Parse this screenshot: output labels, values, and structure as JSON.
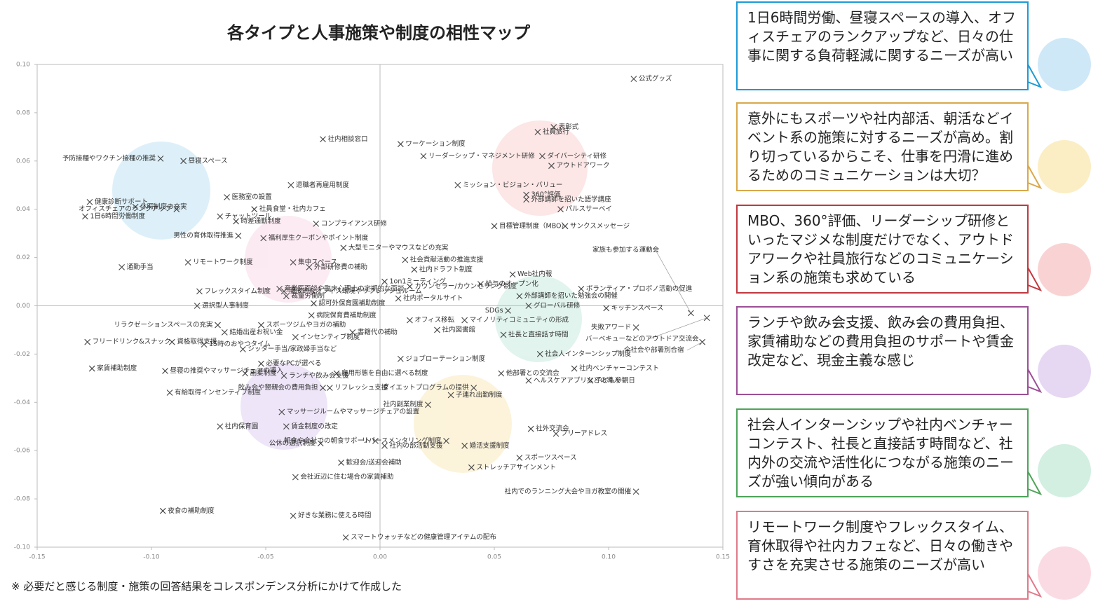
{
  "chart_data": {
    "type": "scatter",
    "title": "各タイプと人事施策や制度の相性マップ",
    "labels": [
      "公式グッズ",
      "社内相談窓口",
      "ワーケーション制度",
      "リーダーシップ・マネジメント研修",
      "表彰式",
      "社員旅行",
      "ダイバーシティ研修",
      "アウトドアワーク",
      "ミッション・ビジョン・バリュー",
      "360°評価",
      "外部講師を招いた語学講座",
      "パルスサーベイ",
      "サンクスメッセージ",
      "目標管理制度（MBO）",
      "家族も参加する運動会",
      "バーベキューなどのアウトドア交流会",
      "全社会や部署別合宿",
      "予防接種やワクチン接種の推奨",
      "昼寝スペース",
      "オフィスチェアのランクアップ",
      "健康診断サポート",
      "休暇制度の充実",
      "1日6時間労働制度",
      "退職者再雇用制度",
      "医務室の設置",
      "社員食堂・社内カフェ",
      "チャットツール",
      "時差通勤制度",
      "コンプライアンス研修",
      "福利厚生クーポンやポイント制度",
      "男性の育休取得推進",
      "大型モニターやマウスなどの充実",
      "社会貢献活動の推進支援",
      "社内ドラフト制度",
      "通勤手当",
      "リモートワーク制度",
      "集中スペース",
      "外部研修費の補助",
      "Web社内報",
      "開放的なオフィス環境やリフレッシュルーム",
      "1on1ミーティング",
      "給与のオープン化",
      "産業医面談や臨床心理士の定期的な面談",
      "カウンセラー/カウンセリング制度",
      "ボランティア・プロボノ活動の促進",
      "フレックスタイム制度",
      "裁量労働制",
      "外部講師を招いた勉強会の開催",
      "社内ポータルサイト",
      "選択型人事制度",
      "認可外保育園補助制度",
      "グローバル研修",
      "キッチンスペース",
      "SDGs",
      "病院保育費補助制度",
      "マイノリティコミュニティの形成",
      "リラクゼーションスペースの充実",
      "結婚出産お祝い金",
      "スポーツジムやヨガの補助",
      "オフィス移転",
      "社内図書館",
      "失敗アワード",
      "フリードリンク&スナック",
      "資格取得支援",
      "インセンティブ制度",
      "書籍代の補助",
      "社長と直接話す時間",
      "15時のおやつタイム",
      "シッター手当/家政婦手当など",
      "ジョブローテーション制度",
      "社会人インターンシップ制度",
      "社内ベンチャーコンテスト",
      "子ども参観日",
      "昼寝の推奨やマッサージチェアの導入",
      "家賃補助制度",
      "必要なPCが選べる",
      "雇用形態を自由に選べる制度",
      "ランチや飲み会支援",
      "他部署との交流会",
      "ヘルスケアアプリなどの導入",
      "副業制度",
      "リフレッシュ支援",
      "ダイエットプログラムの提供",
      "有給取得インセンティブ制度",
      "飲み会や懇親会の費用負担",
      "子連れ出勤制度",
      "社内副業制度",
      "マッサージルームやマッサージチェアの設置",
      "社内保育園",
      "賃金制度の改定",
      "社外交流会",
      "フリーアドレス",
      "リバースメンタリング制度",
      "朝食や会社での朝食サポート",
      "公休の選択制度",
      "婚活支援制度",
      "社内の部活動支援",
      "スポーツスペース",
      "歓迎会/送迎会補助",
      "ストレッチアサインメント",
      "会社近辺に住む場合の家賃補助",
      "社内でのランニング大会やヨガ教室の開催",
      "夜食の補助制度",
      "好きな業務に使える時間",
      "スマートウォッチなどの健康管理アイテムの配布"
    ],
    "x": [
      0.111,
      -0.025,
      0.009,
      0.019,
      0.076,
      0.069,
      0.071,
      0.075,
      0.034,
      0.064,
      0.064,
      0.079,
      0.081,
      0.05,
      0.136,
      0.143,
      0.141,
      -0.096,
      -0.086,
      -0.089,
      -0.127,
      -0.107,
      -0.129,
      -0.039,
      -0.067,
      -0.055,
      -0.07,
      -0.063,
      -0.028,
      -0.051,
      -0.062,
      -0.016,
      0.011,
      0.015,
      -0.113,
      -0.084,
      -0.038,
      -0.031,
      0.058,
      -0.042,
      0.002,
      0.044,
      -0.044,
      0.013,
      0.088,
      -0.079,
      -0.041,
      0.061,
      0.008,
      -0.08,
      -0.029,
      0.065,
      0.099,
      0.056,
      -0.03,
      0.037,
      -0.071,
      -0.068,
      -0.052,
      0.013,
      0.025,
      0.112,
      -0.128,
      -0.091,
      -0.037,
      -0.012,
      0.054,
      -0.077,
      -0.06,
      0.009,
      0.07,
      0.085,
      0.092,
      -0.094,
      -0.126,
      -0.052,
      -0.019,
      -0.042,
      0.053,
      0.065,
      -0.059,
      -0.022,
      0.041,
      -0.092,
      -0.025,
      0.031,
      0.021,
      -0.043,
      -0.07,
      -0.041,
      0.066,
      0.077,
      0.029,
      -0.002,
      -0.026,
      0.037,
      0.002,
      0.061,
      -0.017,
      0.04,
      -0.037,
      0.112,
      -0.095,
      -0.038,
      -0.015
    ],
    "y": [
      0.094,
      0.069,
      0.067,
      0.062,
      0.074,
      0.072,
      0.062,
      0.058,
      0.05,
      0.046,
      0.044,
      0.04,
      0.033,
      0.033,
      -0.003,
      -0.005,
      -0.015,
      0.061,
      0.06,
      0.04,
      0.043,
      0.041,
      0.037,
      0.05,
      0.045,
      0.04,
      0.037,
      0.035,
      0.034,
      0.028,
      0.029,
      0.024,
      0.019,
      0.015,
      0.016,
      0.018,
      0.018,
      0.016,
      0.013,
      0.006,
      0.01,
      0.009,
      0.007,
      0.008,
      0.007,
      0.006,
      0.004,
      0.004,
      0.003,
      0.0,
      0.001,
      0.0,
      -0.001,
      -0.002,
      -0.004,
      -0.006,
      -0.008,
      -0.011,
      -0.008,
      -0.006,
      -0.01,
      -0.009,
      -0.015,
      -0.015,
      -0.013,
      -0.011,
      -0.012,
      -0.016,
      -0.018,
      -0.022,
      -0.02,
      -0.026,
      -0.031,
      -0.027,
      -0.026,
      -0.024,
      -0.028,
      -0.029,
      -0.028,
      -0.031,
      -0.028,
      -0.034,
      -0.034,
      -0.036,
      -0.034,
      -0.037,
      -0.041,
      -0.044,
      -0.05,
      -0.05,
      -0.051,
      -0.053,
      -0.056,
      -0.056,
      -0.057,
      -0.058,
      -0.058,
      -0.063,
      -0.065,
      -0.067,
      -0.071,
      -0.077,
      -0.085,
      -0.087,
      -0.096
    ],
    "xlim": [
      -0.15,
      0.15
    ],
    "xticks": [
      -0.15,
      {
        "value": -0.1,
        "label": "-0.10"
      },
      -0.05,
      {
        "value": 0,
        "label": "0.00"
      },
      0.05,
      {
        "value": 0.1,
        "label": "0.10"
      },
      0.15
    ],
    "ylim": [
      -0.1,
      0.1
    ],
    "yticks": [
      {
        "value": -0.1,
        "label": "-0.10"
      },
      -0.08,
      -0.06,
      -0.04,
      -0.02,
      {
        "value": 0,
        "label": "0.00"
      },
      0.02,
      0.04,
      0.06,
      0.08,
      {
        "value": 0.1,
        "label": "0.10"
      }
    ],
    "color": "#444444"
  },
  "callouts": [
    {
      "text": "1日6時間労働、昼寝スペースの導入、オフィスチェアのランクアップなど、日々の仕事に関する負荷軽減に関するニーズが高い",
      "color": "#1a9bd7"
    },
    {
      "text": "意外にもスポーツや社内部活、朝活などイベント系の施策に対するニーズが高め。割り切っているからこそ、仕事を円滑に進めるためのコミュニケーションは大切？",
      "color": "#d9a84a"
    },
    {
      "text": "MBO、360°評価、リーダーシップ研修といったマジメな制度だけでなく、アウトドアワークや社員旅行などのコミュニケーション系の施策も求めている",
      "color": "#c0393f"
    },
    {
      "text": "ランチや飲み会支援、飲み会の費用負担、家賃補助などの費用負担のサポートや賃金改定など、現金主義な感じ",
      "color": "#9c4f96"
    },
    {
      "text": "社会人インターンシップや社内ベンチャーコンテスト、社長と直接話す時間など、社内外の交流や活性化につながる施策のニーズが強い傾向がある",
      "color": "#4ea35a"
    },
    {
      "text": "リモートワーク制度やフレックスタイム、育休取得や社内カフェなど、日々の働きやすさを充実させる施策のニーズが高い",
      "color": "#e07a8a"
    }
  ],
  "footnote": "※ 必要だと感じる制度・施策の回答結果をコレスポンデンス分析にかけて作成した"
}
